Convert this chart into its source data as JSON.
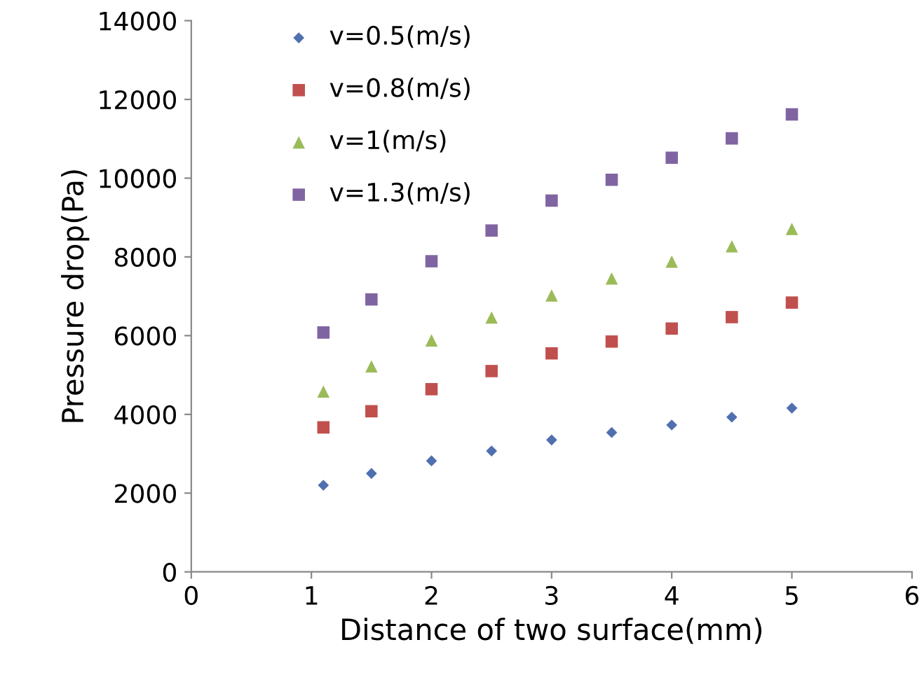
{
  "chart_data": {
    "type": "scatter",
    "xlabel": "Distance of two surface(mm)",
    "ylabel": "Pressure drop(Pa)",
    "x": [
      1.1,
      1.5,
      2,
      2.5,
      3,
      3.5,
      4,
      4.5,
      5
    ],
    "series": [
      {
        "name": "v=0.5(m/s)",
        "color": "#4f6fb0",
        "marker": "diamond",
        "values": [
          2200,
          2500,
          2820,
          3070,
          3350,
          3540,
          3730,
          3930,
          4160
        ]
      },
      {
        "name": "v=0.8(m/s)",
        "color": "#c0504d",
        "marker": "square",
        "values": [
          3670,
          4080,
          4640,
          5100,
          5550,
          5850,
          6180,
          6470,
          6840
        ]
      },
      {
        "name": "v=1(m/s)",
        "color": "#9bbb59",
        "marker": "triangle",
        "values": [
          4580,
          5220,
          5880,
          6460,
          7020,
          7450,
          7880,
          8270,
          8710
        ]
      },
      {
        "name": "v=1.3(m/s)",
        "color": "#8064a2",
        "marker": "square",
        "values": [
          6080,
          6920,
          7890,
          8670,
          9430,
          9960,
          10520,
          11010,
          11620
        ]
      }
    ],
    "xlim": [
      0,
      6
    ],
    "xticks": [
      0,
      1,
      2,
      3,
      4,
      5,
      6
    ],
    "ylim": [
      0,
      14000
    ],
    "yticks": [
      0,
      2000,
      4000,
      6000,
      8000,
      10000,
      12000,
      14000
    ],
    "grid": false,
    "legend": "top left"
  }
}
